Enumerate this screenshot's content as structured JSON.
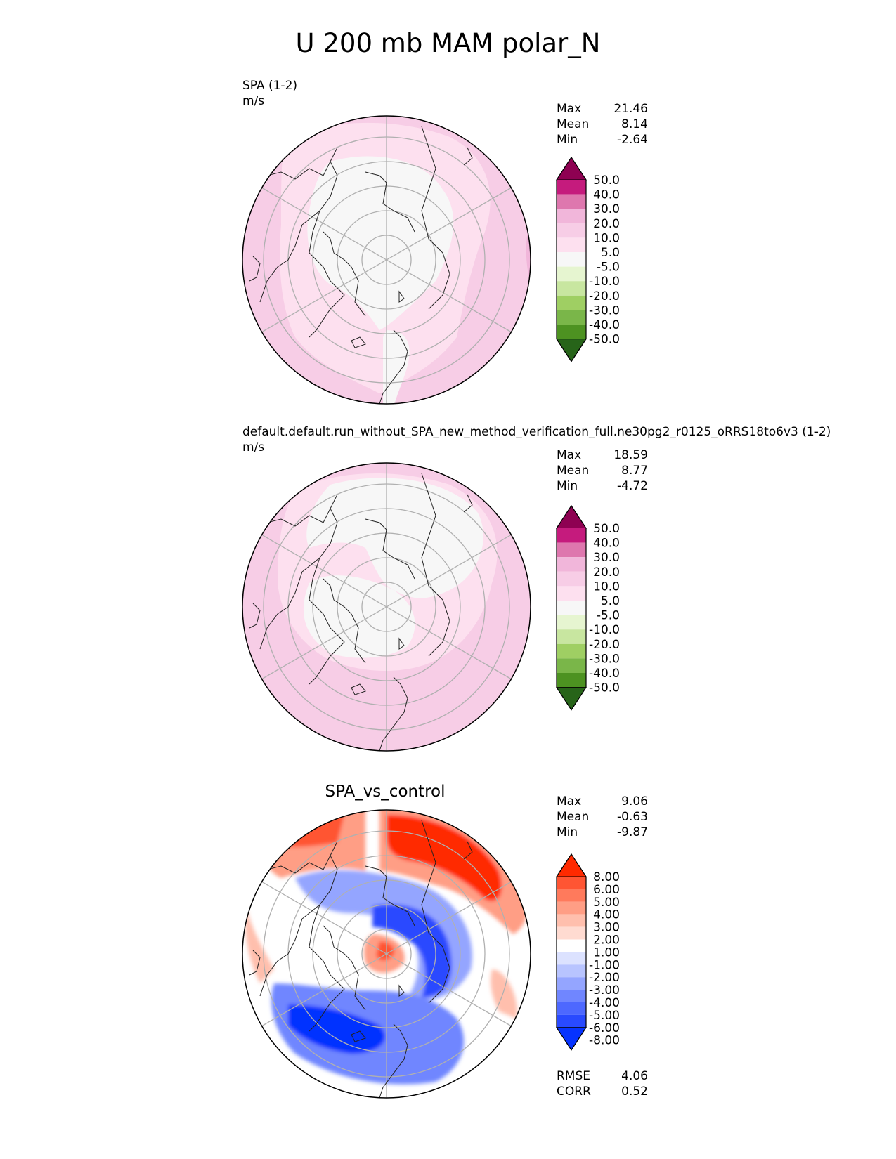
{
  "figure_title": "U 200 mb MAM polar_N",
  "panels": [
    {
      "title": "SPA (1-2)",
      "units": "m/s",
      "stats": {
        "max_label": "Max",
        "max": "21.46",
        "mean_label": "Mean",
        "mean": "8.14",
        "min_label": "Min",
        "min": "-2.64"
      },
      "colorbar_labels": [
        "50.0",
        "40.0",
        "30.0",
        "20.0",
        "10.0",
        "5.0",
        "-5.0",
        "-10.0",
        "-20.0",
        "-30.0",
        "-40.0",
        "-50.0"
      ]
    },
    {
      "title": "default.default.run_without_SPA_new_method_verification_full.ne30pg2_r0125_oRRS18to6v3 (1-2)",
      "units": "m/s",
      "stats": {
        "max_label": "Max",
        "max": "18.59",
        "mean_label": "Mean",
        "mean": "8.77",
        "min_label": "Min",
        "min": "-4.72"
      },
      "colorbar_labels": [
        "50.0",
        "40.0",
        "30.0",
        "20.0",
        "10.0",
        "5.0",
        "-5.0",
        "-10.0",
        "-20.0",
        "-30.0",
        "-40.0",
        "-50.0"
      ]
    },
    {
      "title": "SPA_vs_control",
      "stats": {
        "max_label": "Max",
        "max": "9.06",
        "mean_label": "Mean",
        "mean": "-0.63",
        "min_label": "Min",
        "min": "-9.87"
      },
      "colorbar_labels": [
        "8.00",
        "6.00",
        "5.00",
        "4.00",
        "3.00",
        "2.00",
        "1.00",
        "-1.00",
        "-2.00",
        "-3.00",
        "-4.00",
        "-5.00",
        "-6.00",
        "-8.00"
      ],
      "metrics": {
        "rmse_label": "RMSE",
        "rmse": "4.06",
        "corr_label": "CORR",
        "corr": "0.52"
      }
    }
  ],
  "colors": {
    "pink_scale": [
      "#8e0152",
      "#c51b7d",
      "#de77ae",
      "#f1b6da",
      "#f7cde6",
      "#fde0ef",
      "#f7f7f7",
      "#e6f5d0",
      "#c8e6a0",
      "#9fcf63",
      "#7ab649",
      "#4d9221",
      "#276419"
    ],
    "diff_scale": [
      "#ff2a00",
      "#ff5533",
      "#ff7a5c",
      "#ff9e85",
      "#ffbfad",
      "#ffdbd1",
      "#ffffff",
      "#dce2ff",
      "#b8c4ff",
      "#94a5ff",
      "#7086ff",
      "#4d68ff",
      "#294aff",
      "#0633ff"
    ]
  },
  "chart_data": [
    {
      "type": "heatmap",
      "title": "SPA (1-2)",
      "units": "m/s",
      "projection": "north polar stereographic",
      "stats": {
        "max": 21.46,
        "mean": 8.14,
        "min": -2.64
      },
      "levels": [
        -50,
        -40,
        -30,
        -20,
        -10,
        -5,
        5,
        10,
        20,
        30,
        40,
        50
      ]
    },
    {
      "type": "heatmap",
      "title": "default.default.run_without_SPA_new_method_verification_full.ne30pg2_r0125_oRRS18to6v3 (1-2)",
      "units": "m/s",
      "projection": "north polar stereographic",
      "stats": {
        "max": 18.59,
        "mean": 8.77,
        "min": -4.72
      },
      "levels": [
        -50,
        -40,
        -30,
        -20,
        -10,
        -5,
        5,
        10,
        20,
        30,
        40,
        50
      ]
    },
    {
      "type": "heatmap",
      "title": "SPA_vs_control",
      "projection": "north polar stereographic",
      "stats": {
        "max": 9.06,
        "mean": -0.63,
        "min": -9.87,
        "rmse": 4.06,
        "corr": 0.52
      },
      "levels": [
        -8,
        -6,
        -5,
        -4,
        -3,
        -2,
        -1,
        1,
        2,
        3,
        4,
        5,
        6,
        8
      ]
    }
  ]
}
